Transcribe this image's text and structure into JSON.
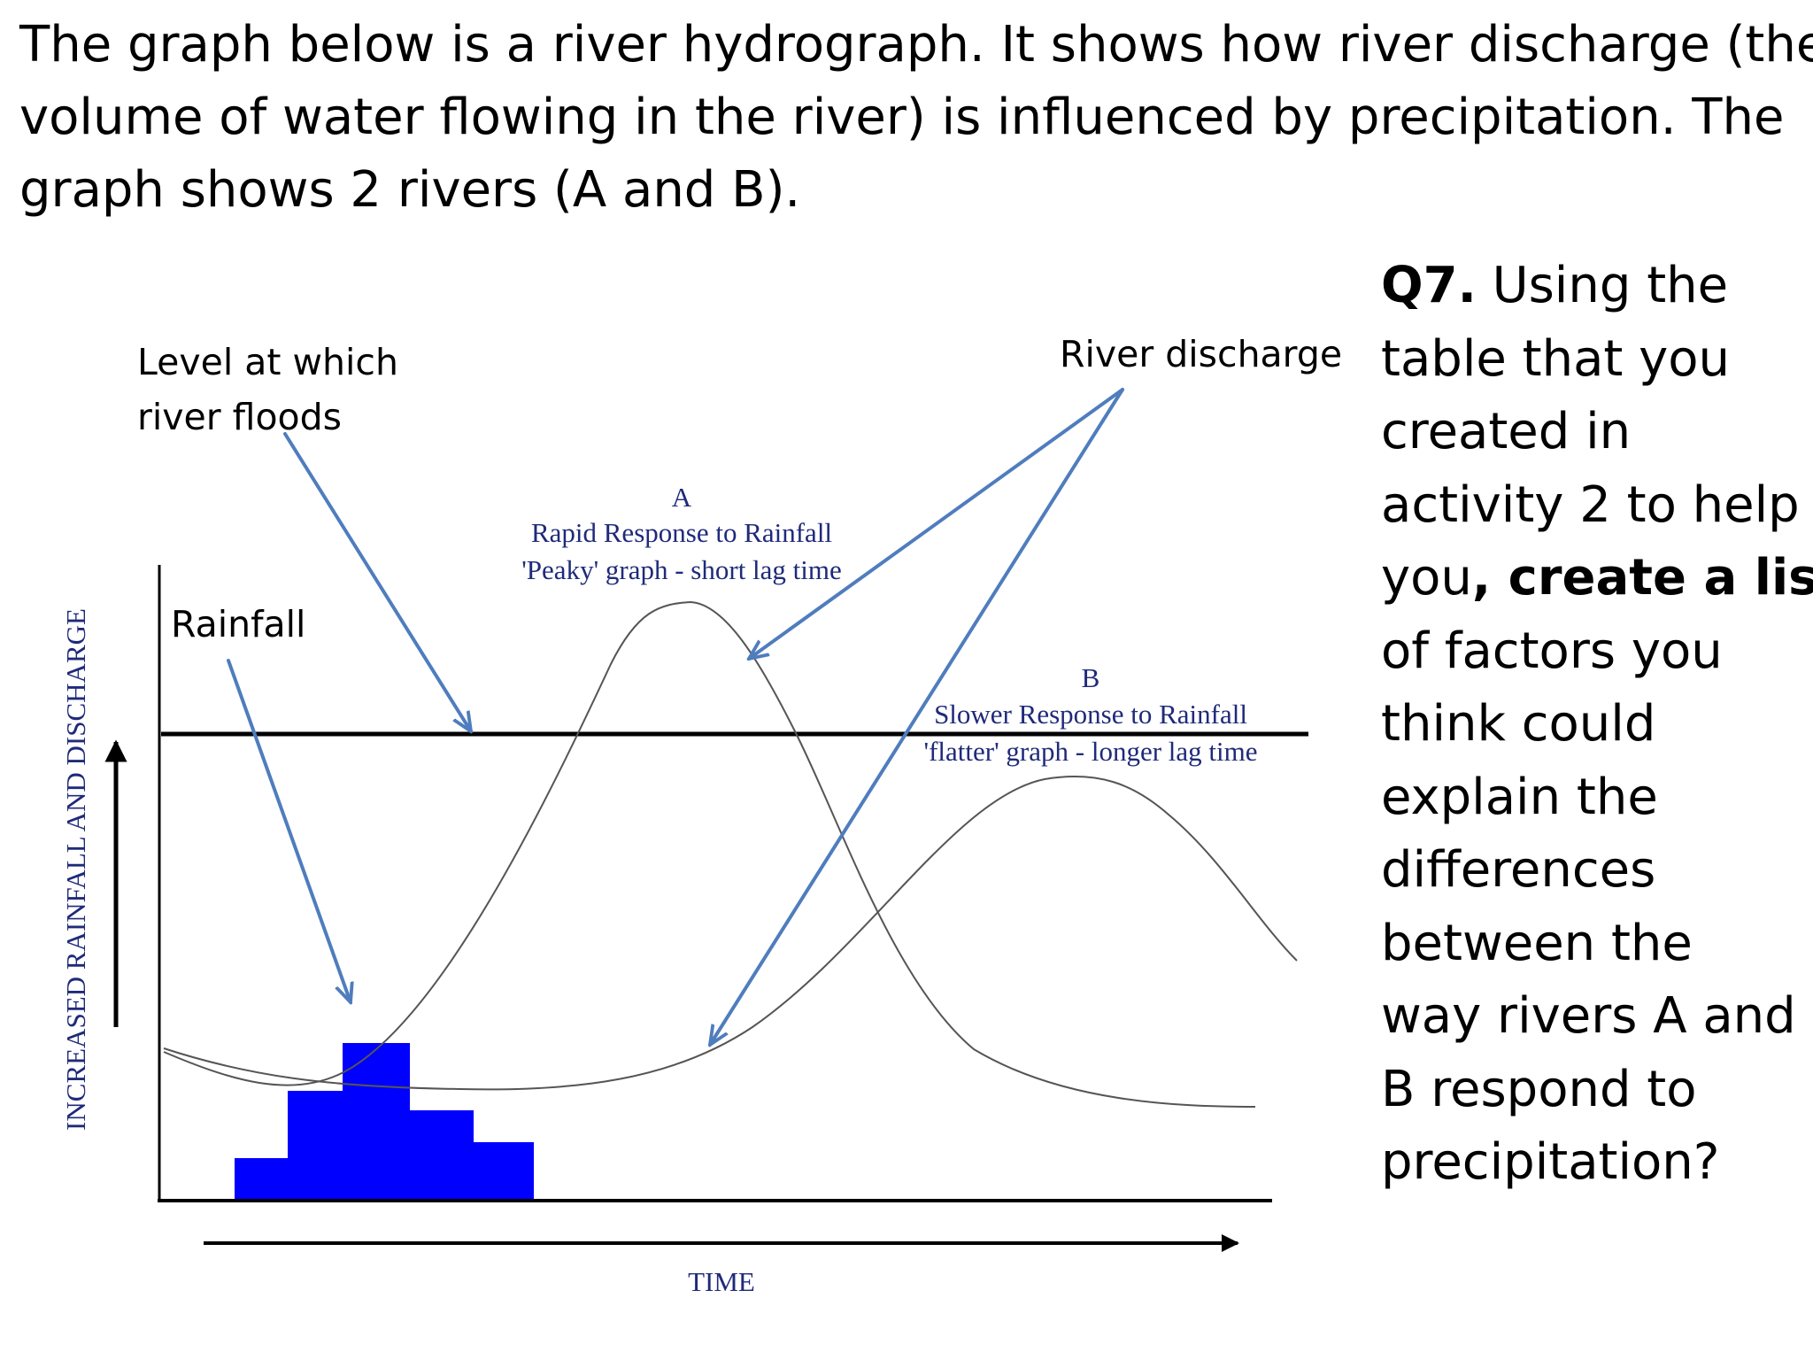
{
  "intro": {
    "lines": [
      "The graph below is a river hydrograph. It shows how river discharge (the",
      "volume of water flowing in the river) is influenced by precipitation. The",
      "graph shows 2 rivers (A and B)."
    ]
  },
  "question": {
    "label": "Q7.",
    "lines": [
      " Using the",
      "table that you",
      "created in",
      "activity 2 to help",
      "you",
      ", create a list",
      "of factors you",
      "think could",
      "explain the",
      "differences",
      "between the",
      "way rivers A and",
      "B respond to",
      "precipitation?"
    ]
  },
  "diagram": {
    "annotations": {
      "flood_level": [
        "Level at which",
        "river floods"
      ],
      "river_discharge": "River discharge",
      "rainfall": "Rainfall"
    },
    "curve_a": {
      "letter": "A",
      "line1": "Rapid Response to Rainfall",
      "line2": "'Peaky' graph - short lag time"
    },
    "curve_b": {
      "letter": "B",
      "line1": "Slower Response to Rainfall",
      "line2": "'flatter' graph - longer lag time"
    },
    "y_axis_label": "INCREASED RAINFALL AND DISCHARGE",
    "x_axis_label": "TIME",
    "colors": {
      "rainfall_bars": "#0000ff",
      "arrows": "#4f7dbd",
      "serif_labels": "#1f2a7a"
    }
  }
}
